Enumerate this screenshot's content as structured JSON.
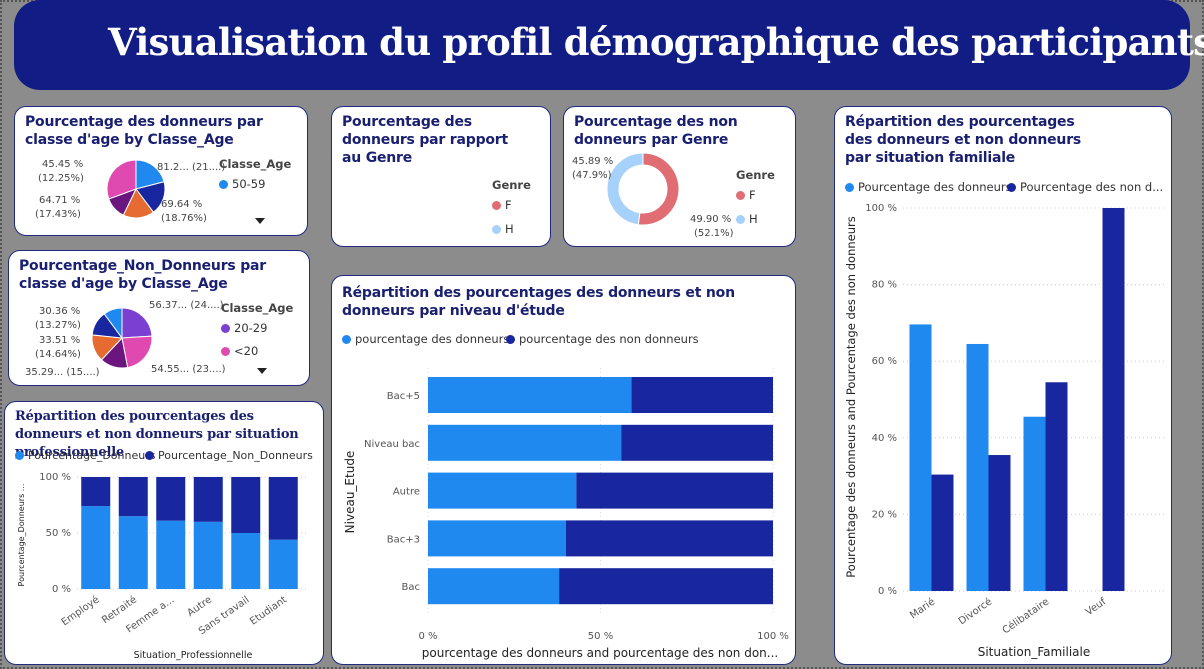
{
  "title": "Visualisation du profil démographique des participants",
  "colors": {
    "blue": "#2089f0",
    "navy": "#1827a0",
    "purple": "#7b3fd2",
    "orange": "#e56b30",
    "plum": "#6a167e",
    "pink": "#e04ab0",
    "red": "#e06c74",
    "lightblue": "#a6d1fa"
  },
  "age_don": {
    "title": "Pourcentage des donneurs par classe d'age by Classe_Age",
    "legend_title": "Classe_Age",
    "legend_item": "50-59",
    "labels": [
      "81.2... (21....)",
      "69.64 %",
      "(18.76%)",
      "64.71 %",
      "(17.43%)",
      "45.45 %",
      "(12.25%)"
    ]
  },
  "age_non": {
    "title": "Pourcentage_Non_Donneurs par classe d'age by Classe_Age",
    "legend_title": "Classe_Age",
    "legend_items": [
      "20-29",
      "<20"
    ],
    "labels": [
      "56.37... (24....)",
      "54.55... (23....)",
      "35.29... (15....)",
      "33.51 %",
      "(14.64%)",
      "30.36 %",
      "(13.27%)"
    ]
  },
  "genre_don": {
    "title": "Pourcentage des donneurs par rapport au Genre",
    "legend_title": "Genre",
    "legend_items": [
      "F",
      "H"
    ]
  },
  "genre_non": {
    "title": "Pourcentage des non donneurs par Genre",
    "legend_title": "Genre",
    "legend_items": [
      "F",
      "H"
    ],
    "labels": [
      "45.89 %",
      "(47.9%)",
      "49.90 %",
      "(52.1%)"
    ]
  },
  "prof": {
    "title": "Répartition des pourcentages des donneurs et non donneurs par situation professionnelle",
    "legend": [
      "Pourcentage_Donneurs",
      "Pourcentage_Non_Donneurs"
    ],
    "ylabel": "Pourcentage_Donneurs ...",
    "xlabel": "Situation_Professionnelle",
    "yticks": [
      "0 %",
      "50 %",
      "100 %"
    ]
  },
  "etude": {
    "title": "Répartition des pourcentages des donneurs et non donneurs par niveau d'étude",
    "legend": [
      "pourcentage des donneurs",
      "pourcentage des non donneurs"
    ],
    "ylabel": "Niveau_Etude",
    "xlabel": "pourcentage des donneurs and pourcentage des non don...",
    "xticks": [
      "0 %",
      "50 %",
      "100 %"
    ]
  },
  "fam": {
    "title": "Répartition des pourcentages des donneurs et non donneurs par situation familiale",
    "legend": [
      "Pourcentage des donneurs",
      "Pourcentage des non d..."
    ],
    "ylabel": "Pourcentage des donneurs and Pourcentage des non donneurs",
    "xlabel": "Situation_Familiale",
    "yticks": [
      "0 %",
      "20 %",
      "40 %",
      "60 %",
      "80 %",
      "100 %"
    ]
  },
  "chart_data": [
    {
      "type": "pie",
      "title": "Pourcentage des donneurs par classe d'age by Classe_Age",
      "values": [
        21,
        18.76,
        17.43,
        12.25,
        30.56
      ],
      "labels": [
        "81.2...",
        "69.64 %",
        "64.71 %",
        "45.45 %",
        ""
      ]
    },
    {
      "type": "pie",
      "title": "Pourcentage_Non_Donneurs par classe d'age by Classe_Age",
      "values": [
        24,
        23,
        15,
        14.64,
        13.27,
        10.09
      ],
      "labels": [
        "56.37...",
        "54.55...",
        "35.29...",
        "33.51 %",
        "30.36 %",
        ""
      ]
    },
    {
      "type": "pie",
      "title": "Pourcentage des non donneurs par Genre",
      "categories": [
        "F",
        "H"
      ],
      "values": [
        52.1,
        47.9
      ],
      "labels": [
        "49.90 %",
        "45.89 %"
      ]
    },
    {
      "type": "bar",
      "title": "Répartition des pourcentages des donneurs et non donneurs par situation professionnelle",
      "categories": [
        "Employé",
        "Retraité",
        "Femme a...",
        "Autre",
        "Sans travail",
        "Etudiant"
      ],
      "series": [
        {
          "name": "Pourcentage_Donneurs",
          "values": [
            74,
            65,
            61,
            60,
            50,
            44
          ]
        },
        {
          "name": "Pourcentage_Non_Donneurs",
          "values": [
            26,
            35,
            39,
            40,
            50,
            56
          ]
        }
      ],
      "ylim": [
        0,
        100
      ]
    },
    {
      "type": "bar",
      "title": "Répartition des pourcentages des donneurs et non donneurs par niveau d'étude",
      "categories": [
        "Bac+5",
        "Niveau bac",
        "Autre",
        "Bac+3",
        "Bac"
      ],
      "series": [
        {
          "name": "pourcentage des donneurs",
          "values": [
            59,
            56,
            43,
            40,
            38
          ]
        },
        {
          "name": "pourcentage des non donneurs",
          "values": [
            41,
            44,
            57,
            60,
            62
          ]
        }
      ],
      "xlim": [
        0,
        100
      ]
    },
    {
      "type": "bar",
      "title": "Répartition des pourcentages des donneurs et non donneurs par situation familiale",
      "categories": [
        "Marié",
        "Divorcé",
        "Célibataire",
        "Veuf"
      ],
      "series": [
        {
          "name": "Pourcentage des donneurs",
          "values": [
            69.6,
            64.5,
            45.5,
            0
          ]
        },
        {
          "name": "Pourcentage des non d...",
          "values": [
            30.4,
            35.5,
            54.5,
            100
          ]
        }
      ],
      "ylim": [
        0,
        100
      ]
    }
  ]
}
